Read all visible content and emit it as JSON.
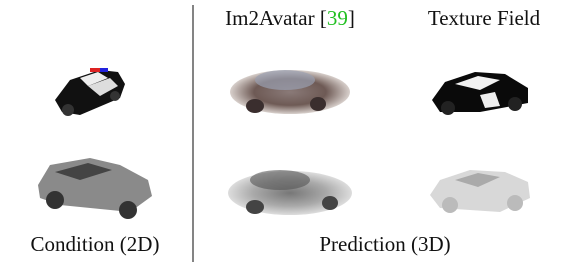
{
  "columns": [
    {
      "name": "Im2Avatar ",
      "cite_open": "[",
      "cite": "39",
      "cite_close": "]"
    },
    {
      "name": "Texture Field"
    }
  ],
  "footer": {
    "left": "Condition (2D)",
    "right": "Prediction (3D)"
  }
}
